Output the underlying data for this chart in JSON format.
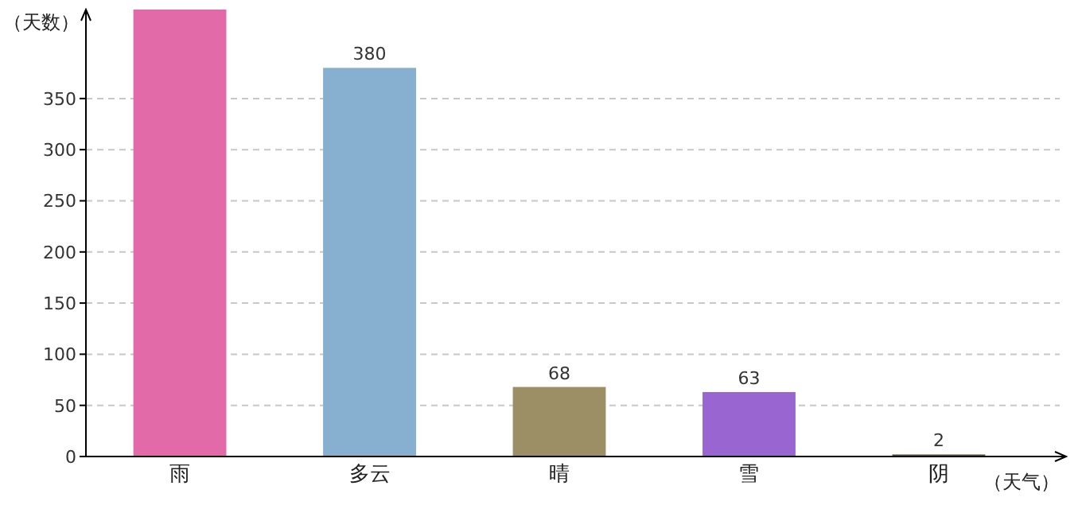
{
  "chart_data": {
    "type": "bar",
    "xlabel": "（天气）",
    "ylabel": "（天数）",
    "categories": [
      "雨",
      "多云",
      "晴",
      "雪",
      "阴"
    ],
    "values": [
      437,
      380,
      68,
      63,
      2
    ],
    "colors": [
      "#e36aa9",
      "#86afd0",
      "#9c8f66",
      "#9966d1",
      "#5d5a3b"
    ],
    "value_labels": [
      null,
      "380",
      "68",
      "63",
      "2"
    ],
    "ylim": [
      0,
      437
    ],
    "yticks": [
      0,
      50,
      100,
      150,
      200,
      250,
      300,
      350
    ],
    "grid": "y"
  }
}
